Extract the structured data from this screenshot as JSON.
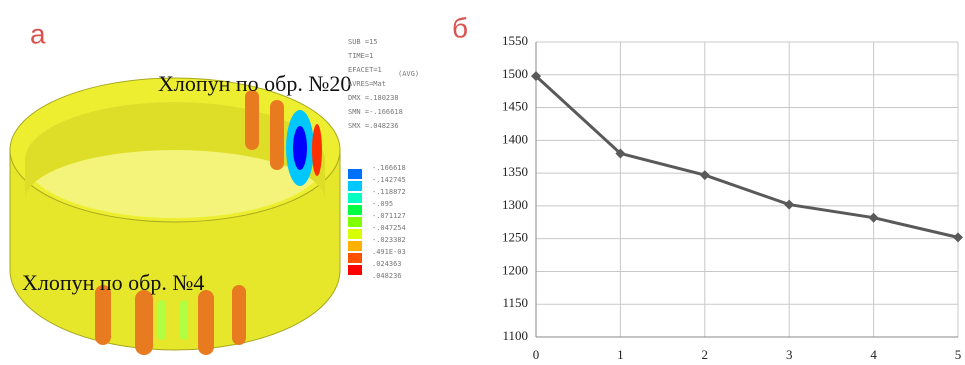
{
  "left_panel": {
    "label": "а",
    "annotations": [
      "Хлопун по обр. №20",
      "Хлопун по обр. №4"
    ],
    "info": [
      "SUB =15",
      "TIME=1",
      "(AVG)",
      "EFACET=1",
      "AVRES=Mat",
      "DMX =.180238",
      "SMN =-.166618",
      "SMX =.048236"
    ],
    "legend_labels": [
      "-.166618",
      "-.142745",
      "-.118872",
      "-.095",
      "-.071127",
      "-.047254",
      "-.023382",
      ".491E-03",
      ".024363",
      ".048236"
    ],
    "legend_colors": [
      "#0000ff",
      "#0070ff",
      "#00c8ff",
      "#00ffc0",
      "#00ff40",
      "#80ff00",
      "#d8ff00",
      "#ffb000",
      "#ff5000",
      "#ff0000"
    ]
  },
  "chart_data": {
    "type": "line",
    "title": "б",
    "x": [
      0,
      1,
      2,
      3,
      4,
      5
    ],
    "series": [
      {
        "color": "#595959",
        "values": [
          1498,
          1380,
          1347,
          1302,
          1282,
          1252
        ]
      }
    ],
    "xlim": [
      0,
      5
    ],
    "xticks": [
      0,
      1,
      2,
      3,
      4,
      5
    ],
    "ylim": [
      1100,
      1550
    ],
    "yticks": [
      1100,
      1150,
      1200,
      1250,
      1300,
      1350,
      1400,
      1450,
      1500,
      1550
    ],
    "grid": true
  }
}
